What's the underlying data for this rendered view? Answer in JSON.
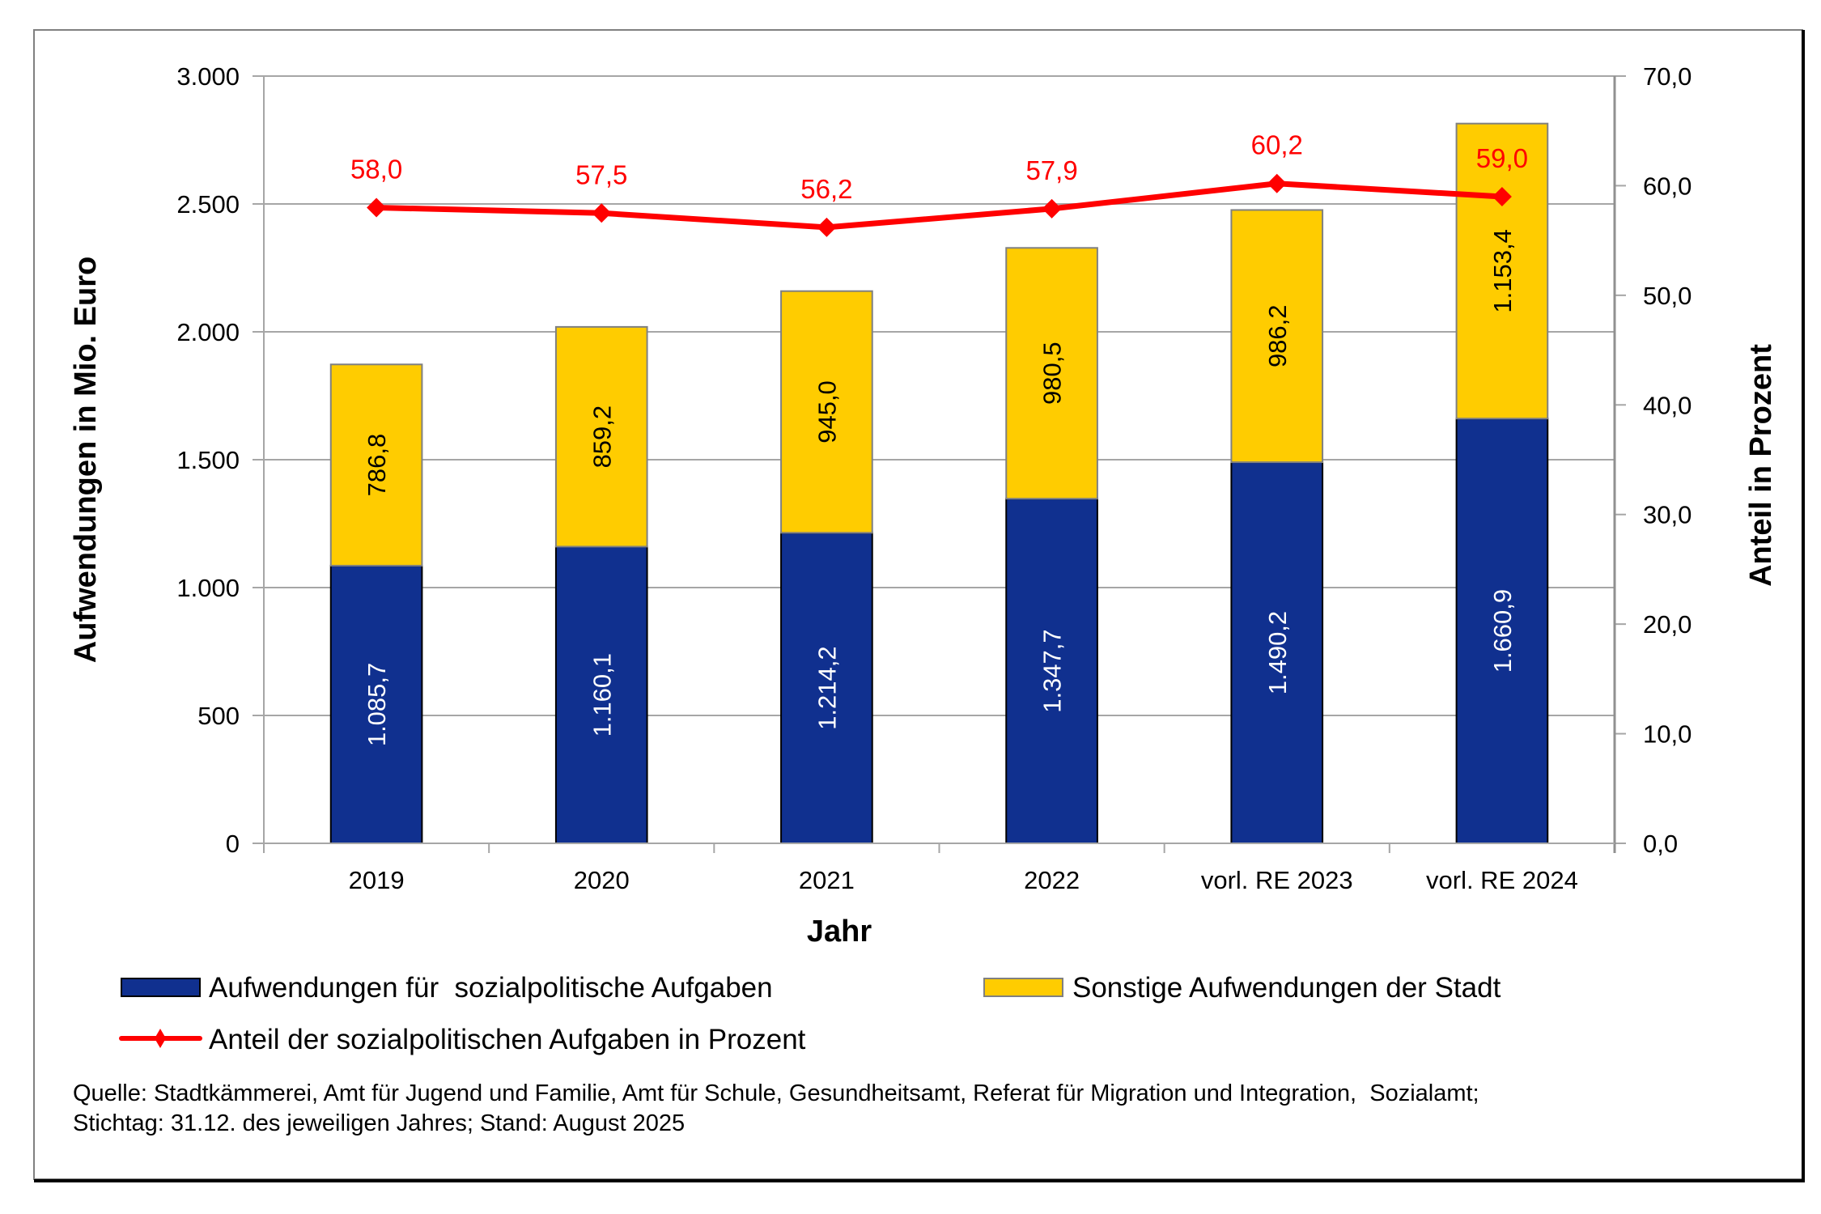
{
  "chart_data": {
    "type": "bar",
    "stacked": true,
    "categories": [
      "2019",
      "2020",
      "2021",
      "2022",
      "vorl. RE 2023",
      "vorl. RE 2024"
    ],
    "series": [
      {
        "name": "Aufwendungen für  sozialpolitische Aufgaben",
        "type": "bar",
        "axis": "left",
        "color": "#10308f",
        "values": [
          1085.7,
          1160.1,
          1214.2,
          1347.7,
          1490.2,
          1660.9
        ],
        "labels": [
          "1.085,7",
          "1.160,1",
          "1.214,2",
          "1.347,7",
          "1.490,2",
          "1.660,9"
        ],
        "label_color": "#ffffff"
      },
      {
        "name": "Sonstige Aufwendungen der Stadt",
        "type": "bar",
        "axis": "left",
        "color": "#ffcc00",
        "values": [
          786.8,
          859.2,
          945.0,
          980.5,
          986.2,
          1153.4
        ],
        "labels": [
          "786,8",
          "859,2",
          "945,0",
          "980,5",
          "986,2",
          "1.153,4"
        ],
        "label_color": "#000000"
      },
      {
        "name": "Anteil der sozialpolitischen Aufgaben in Prozent",
        "type": "line",
        "axis": "right",
        "color": "#ff0000",
        "marker": "diamond",
        "values": [
          58.0,
          57.5,
          56.2,
          57.9,
          60.2,
          59.0
        ],
        "labels": [
          "58,0",
          "57,5",
          "56,2",
          "57,9",
          "60,2",
          "59,0"
        ]
      }
    ],
    "title": "",
    "xlabel": "Jahr",
    "ylabel": "Aufwendungen in Mio. Euro",
    "y2label": "Anteil in Prozent",
    "ylim": [
      0,
      3000
    ],
    "y2lim": [
      0,
      70
    ],
    "yticks": [
      0,
      500,
      1000,
      1500,
      2000,
      2500,
      3000
    ],
    "ytick_labels": [
      "0",
      "500",
      "1.000",
      "1.500",
      "2.000",
      "2.500",
      "3.000"
    ],
    "y2ticks": [
      0,
      10,
      20,
      30,
      40,
      50,
      60,
      70
    ],
    "y2tick_labels": [
      "0,0",
      "10,0",
      "20,0",
      "30,0",
      "40,0",
      "50,0",
      "60,0",
      "70,0"
    ],
    "grid": true,
    "legend_position": "bottom"
  },
  "legend": {
    "items": [
      {
        "label": "Aufwendungen für  sozialpolitische Aufgaben",
        "kind": "bar",
        "color": "#10308f"
      },
      {
        "label": "Sonstige Aufwendungen der Stadt",
        "kind": "bar",
        "color": "#ffcc00"
      },
      {
        "label": "Anteil der sozialpolitischen Aufgaben in Prozent",
        "kind": "line",
        "color": "#ff0000"
      }
    ]
  },
  "source": {
    "line1": "Quelle: Stadtkämmerei, Amt für Jugend und Familie, Amt für Schule, Gesundheitsamt, Referat für Migration und Integration,  Sozialamt;",
    "line2": "Stichtag: 31.12. des jeweiligen Jahres; Stand: August 2025"
  }
}
